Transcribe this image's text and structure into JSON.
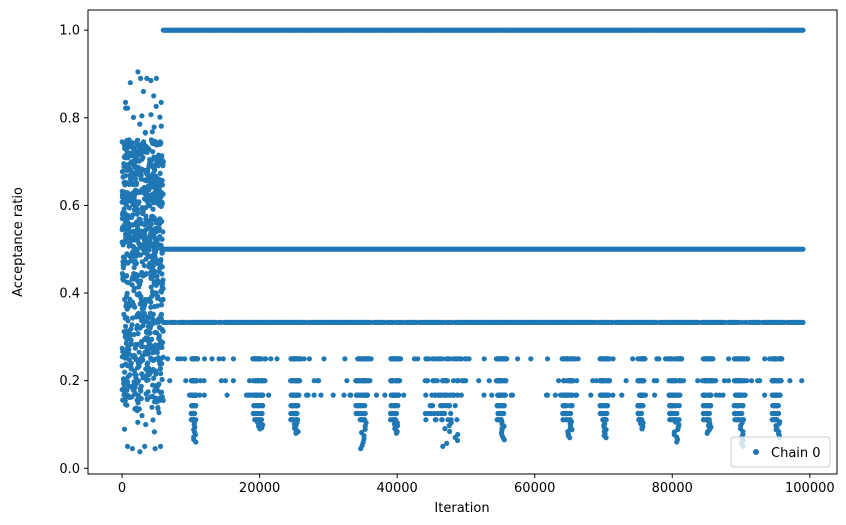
{
  "chart_data": {
    "type": "scatter",
    "xlabel": "Iteration",
    "ylabel": "Acceptance ratio",
    "xlim": [
      -4950,
      103950
    ],
    "ylim": [
      -0.013,
      1.046
    ],
    "xticks": [
      0,
      20000,
      40000,
      60000,
      80000,
      100000
    ],
    "xtick_labels": [
      "0",
      "20000",
      "40000",
      "60000",
      "80000",
      "100000"
    ],
    "yticks": [
      0.0,
      0.2,
      0.4,
      0.6,
      0.8,
      1.0
    ],
    "ytick_labels": [
      "0.0",
      "0.2",
      "0.4",
      "0.6",
      "0.8",
      "1.0"
    ],
    "grid": false,
    "legend": {
      "position": "lower right",
      "entries": [
        "Chain 0"
      ]
    },
    "series": [
      {
        "name": "Chain 0",
        "color": "#1f77b4",
        "marker": "circle",
        "phases": [
          {
            "x_range": [
              0,
              6000
            ],
            "description_values": "burn-in, ratios spread between 0.04 and 0.90"
          },
          {
            "x_range": [
              6000,
              99000
            ],
            "level_values": [
              1.0,
              0.5,
              0.333,
              0.25,
              0.2,
              0.167,
              0.143,
              0.125,
              0.111
            ]
          }
        ],
        "burn_in_extremes": [
          {
            "x": 2300,
            "y": 0.905
          },
          {
            "x": 2700,
            "y": 0.89
          },
          {
            "x": 1200,
            "y": 0.88
          },
          {
            "x": 3600,
            "y": 0.89
          },
          {
            "x": 4200,
            "y": 0.885
          },
          {
            "x": 5000,
            "y": 0.89
          },
          {
            "x": 500,
            "y": 0.835
          },
          {
            "x": 5700,
            "y": 0.835
          },
          {
            "x": 3100,
            "y": 0.86
          },
          {
            "x": 4600,
            "y": 0.85
          },
          {
            "x": 800,
            "y": 0.05
          },
          {
            "x": 1500,
            "y": 0.045
          },
          {
            "x": 2600,
            "y": 0.038
          },
          {
            "x": 3300,
            "y": 0.05
          },
          {
            "x": 4800,
            "y": 0.045
          },
          {
            "x": 5600,
            "y": 0.05
          }
        ],
        "low_level_clusters": [
          {
            "x_start": 10000,
            "x_end": 11000,
            "min_y": 0.06
          },
          {
            "x_start": 19000,
            "x_end": 21000,
            "min_y": 0.09
          },
          {
            "x_start": 24500,
            "x_end": 26000,
            "min_y": 0.08
          },
          {
            "x_start": 34000,
            "x_end": 36000,
            "min_y": 0.045
          },
          {
            "x_start": 39000,
            "x_end": 40500,
            "min_y": 0.08
          },
          {
            "x_start": 44000,
            "x_end": 50500,
            "min_y": 0.05
          },
          {
            "x_start": 54500,
            "x_end": 56000,
            "min_y": 0.065
          },
          {
            "x_start": 64000,
            "x_end": 66000,
            "min_y": 0.07
          },
          {
            "x_start": 69500,
            "x_end": 71000,
            "min_y": 0.07
          },
          {
            "x_start": 75000,
            "x_end": 76000,
            "min_y": 0.09
          },
          {
            "x_start": 79500,
            "x_end": 81500,
            "min_y": 0.06
          },
          {
            "x_start": 84500,
            "x_end": 86000,
            "min_y": 0.08
          },
          {
            "x_start": 89000,
            "x_end": 91000,
            "min_y": 0.05
          },
          {
            "x_start": 94500,
            "x_end": 96000,
            "min_y": 0.07
          }
        ]
      }
    ]
  }
}
